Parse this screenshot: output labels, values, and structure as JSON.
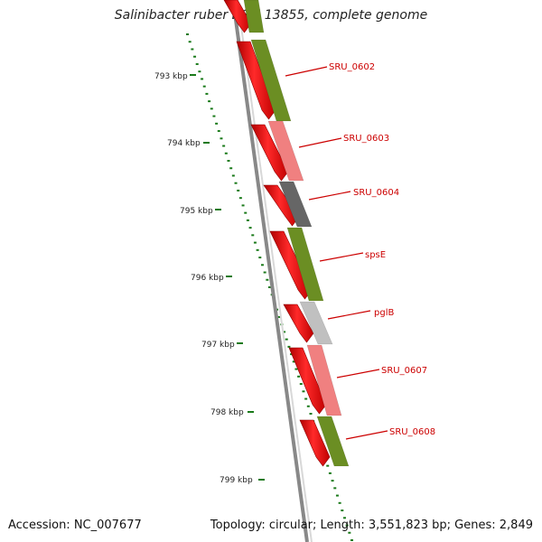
{
  "title": "Salinibacter ruber DSM 13855, complete genome",
  "footer": {
    "accession": "Accession: NC_007677",
    "summary": "Topology: circular; Length: 3,551,823 bp; Genes: 2,849"
  },
  "colors": {
    "backbone": "#888888",
    "tick": "#1a7a1a",
    "gene_red": "#ff0000",
    "olive": "#6b8e23",
    "pink": "#f08080",
    "dark_gray": "#666666",
    "light_gray": "#c0c0c0",
    "label": "#cc0000"
  },
  "scale": {
    "unit": "kbp",
    "labels": [
      "793 kbp",
      "794 kbp",
      "795 kbp",
      "796 kbp",
      "797 kbp",
      "798 kbp",
      "799 kbp"
    ]
  },
  "genes": [
    {
      "name": "SRU_0602",
      "color": "olive"
    },
    {
      "name": "SRU_0603",
      "color": "pink"
    },
    {
      "name": "SRU_0604",
      "color": "dark_gray"
    },
    {
      "name": "spsE",
      "color": "olive"
    },
    {
      "name": "pglB",
      "color": "light_gray"
    },
    {
      "name": "SRU_0607",
      "color": "pink"
    },
    {
      "name": "SRU_0608",
      "color": "olive"
    }
  ]
}
